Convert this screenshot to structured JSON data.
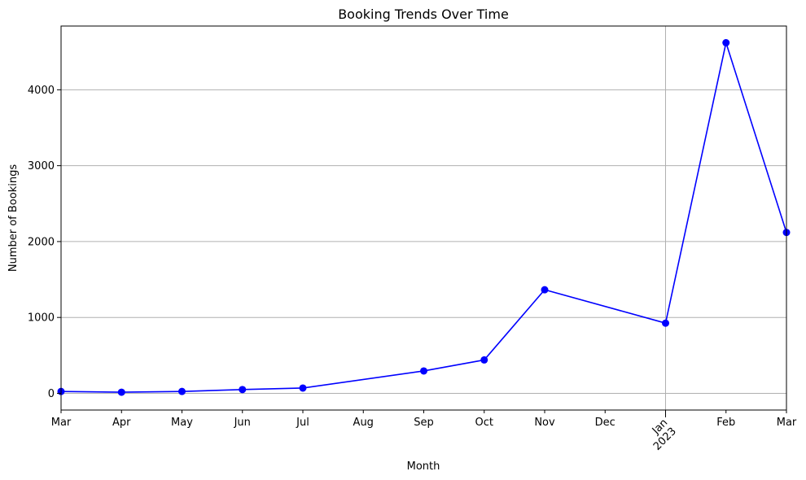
{
  "chart_data": {
    "type": "line",
    "title": "Booking Trends Over Time",
    "xlabel": "Month",
    "ylabel": "Number of Bookings",
    "x": [
      "2022-03",
      "2022-04",
      "2022-05",
      "2022-06",
      "2022-07",
      "2022-09",
      "2022-10",
      "2022-11",
      "2023-01",
      "2023-02",
      "2023-03"
    ],
    "series": [
      {
        "values": [
          25,
          15,
          25,
          50,
          70,
          295,
          440,
          1365,
          925,
          4620,
          2120
        ],
        "color": "#0000ff",
        "marker": "circle"
      }
    ],
    "x_ticks": [
      {
        "x": "2022-03",
        "label": "Mar"
      },
      {
        "x": "2022-04",
        "label": "Apr"
      },
      {
        "x": "2022-05",
        "label": "May"
      },
      {
        "x": "2022-06",
        "label": "Jun"
      },
      {
        "x": "2022-07",
        "label": "Jul"
      },
      {
        "x": "2022-08",
        "label": "Aug"
      },
      {
        "x": "2022-09",
        "label": "Sep"
      },
      {
        "x": "2022-10",
        "label": "Oct"
      },
      {
        "x": "2022-11",
        "label": "Nov"
      },
      {
        "x": "2022-12",
        "label": "Dec"
      },
      {
        "x": "2023-01",
        "label": "Jan",
        "label2": "2023",
        "rotated": true
      },
      {
        "x": "2023-02",
        "label": "Feb"
      },
      {
        "x": "2023-03",
        "label": "Mar"
      }
    ],
    "y_ticks": [
      0,
      1000,
      2000,
      3000,
      4000
    ],
    "xlim": [
      "2022-03",
      "2023-03"
    ],
    "ylim": [
      -220,
      4840
    ],
    "grid": true,
    "legend": false
  }
}
